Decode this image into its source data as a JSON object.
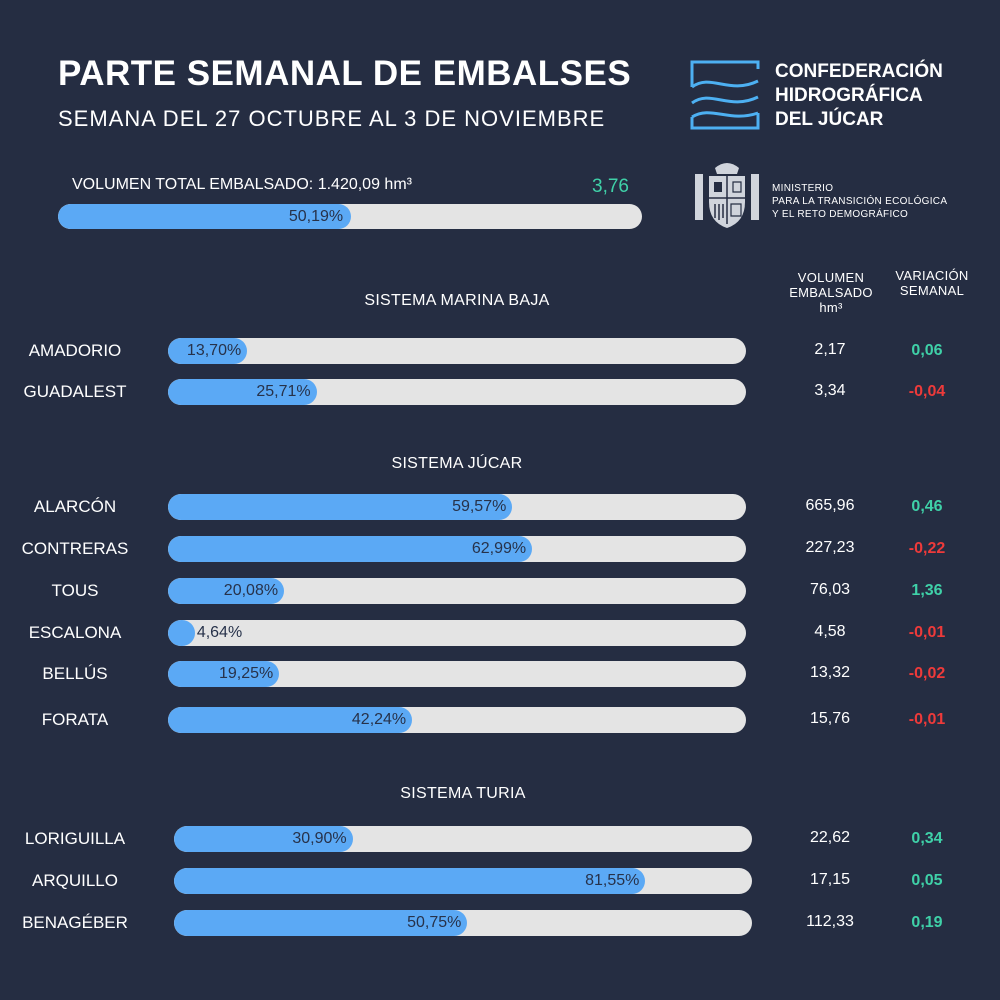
{
  "header": {
    "title": "PARTE SEMANAL DE EMBALSES",
    "subtitle": "SEMANA DEL 27 OCTUBRE AL 3 DE NOVIEMBRE",
    "org_line1": "CONFEDERACIÓN",
    "org_line2": "HIDROGRÁFICA",
    "org_line3": "DEL JÚCAR",
    "ministry_line1": "MINISTERIO",
    "ministry_line2": "PARA LA TRANSICIÓN ECOLÓGICA",
    "ministry_line3": "Y EL RETO DEMOGRÁFICO"
  },
  "total": {
    "label": "VOLUMEN TOTAL EMBALSADO: 1.420,09 hm³",
    "variation": "3,76",
    "percent": 50.19,
    "percent_label": "50,19%"
  },
  "columns": {
    "volume_line1": "VOLUMEN",
    "volume_line2": "EMBALSADO",
    "volume_line3": "hm³",
    "variation_line1": "VARIACIÓN",
    "variation_line2": "SEMANAL"
  },
  "colors": {
    "background": "#252d42",
    "bar_fill": "#5ba9f5",
    "bar_track": "#e4e4e4",
    "positive": "#3fd1a8",
    "negative": "#ee3a3a"
  },
  "chart_data": {
    "type": "bar",
    "orientation": "horizontal",
    "unit": "%",
    "xlim": [
      0,
      100
    ],
    "groups": [
      {
        "name": "SISTEMA MARINA BAJA",
        "reservoirs": [
          {
            "name": "AMADORIO",
            "percent": 13.7,
            "percent_label": "13,70%",
            "volume": "2,17",
            "variation": "0,06",
            "trend": "up"
          },
          {
            "name": "GUADALEST",
            "percent": 25.71,
            "percent_label": "25,71%",
            "volume": "3,34",
            "variation": "-0,04",
            "trend": "down"
          }
        ]
      },
      {
        "name": "SISTEMA JÚCAR",
        "reservoirs": [
          {
            "name": "ALARCÓN",
            "percent": 59.57,
            "percent_label": "59,57%",
            "volume": "665,96",
            "variation": "0,46",
            "trend": "up"
          },
          {
            "name": "CONTRERAS",
            "percent": 62.99,
            "percent_label": "62,99%",
            "volume": "227,23",
            "variation": "-0,22",
            "trend": "down"
          },
          {
            "name": "TOUS",
            "percent": 20.08,
            "percent_label": "20,08%",
            "volume": "76,03",
            "variation": "1,36",
            "trend": "up"
          },
          {
            "name": "ESCALONA",
            "percent": 4.64,
            "percent_label": "4,64%",
            "volume": "4,58",
            "variation": "-0,01",
            "trend": "down"
          },
          {
            "name": "BELLÚS",
            "percent": 19.25,
            "percent_label": "19,25%",
            "volume": "13,32",
            "variation": "-0,02",
            "trend": "down"
          },
          {
            "name": "FORATA",
            "percent": 42.24,
            "percent_label": "42,24%",
            "volume": "15,76",
            "variation": "-0,01",
            "trend": "down"
          }
        ]
      },
      {
        "name": "SISTEMA TURIA",
        "reservoirs": [
          {
            "name": "LORIGUILLA",
            "percent": 30.9,
            "percent_label": "30,90%",
            "volume": "22,62",
            "variation": "0,34",
            "trend": "up"
          },
          {
            "name": "ARQUILLO",
            "percent": 81.55,
            "percent_label": "81,55%",
            "volume": "17,15",
            "variation": "0,05",
            "trend": "up"
          },
          {
            "name": "BENAGÉBER",
            "percent": 50.75,
            "percent_label": "50,75%",
            "volume": "112,33",
            "variation": "0,19",
            "trend": "up"
          }
        ]
      }
    ]
  }
}
